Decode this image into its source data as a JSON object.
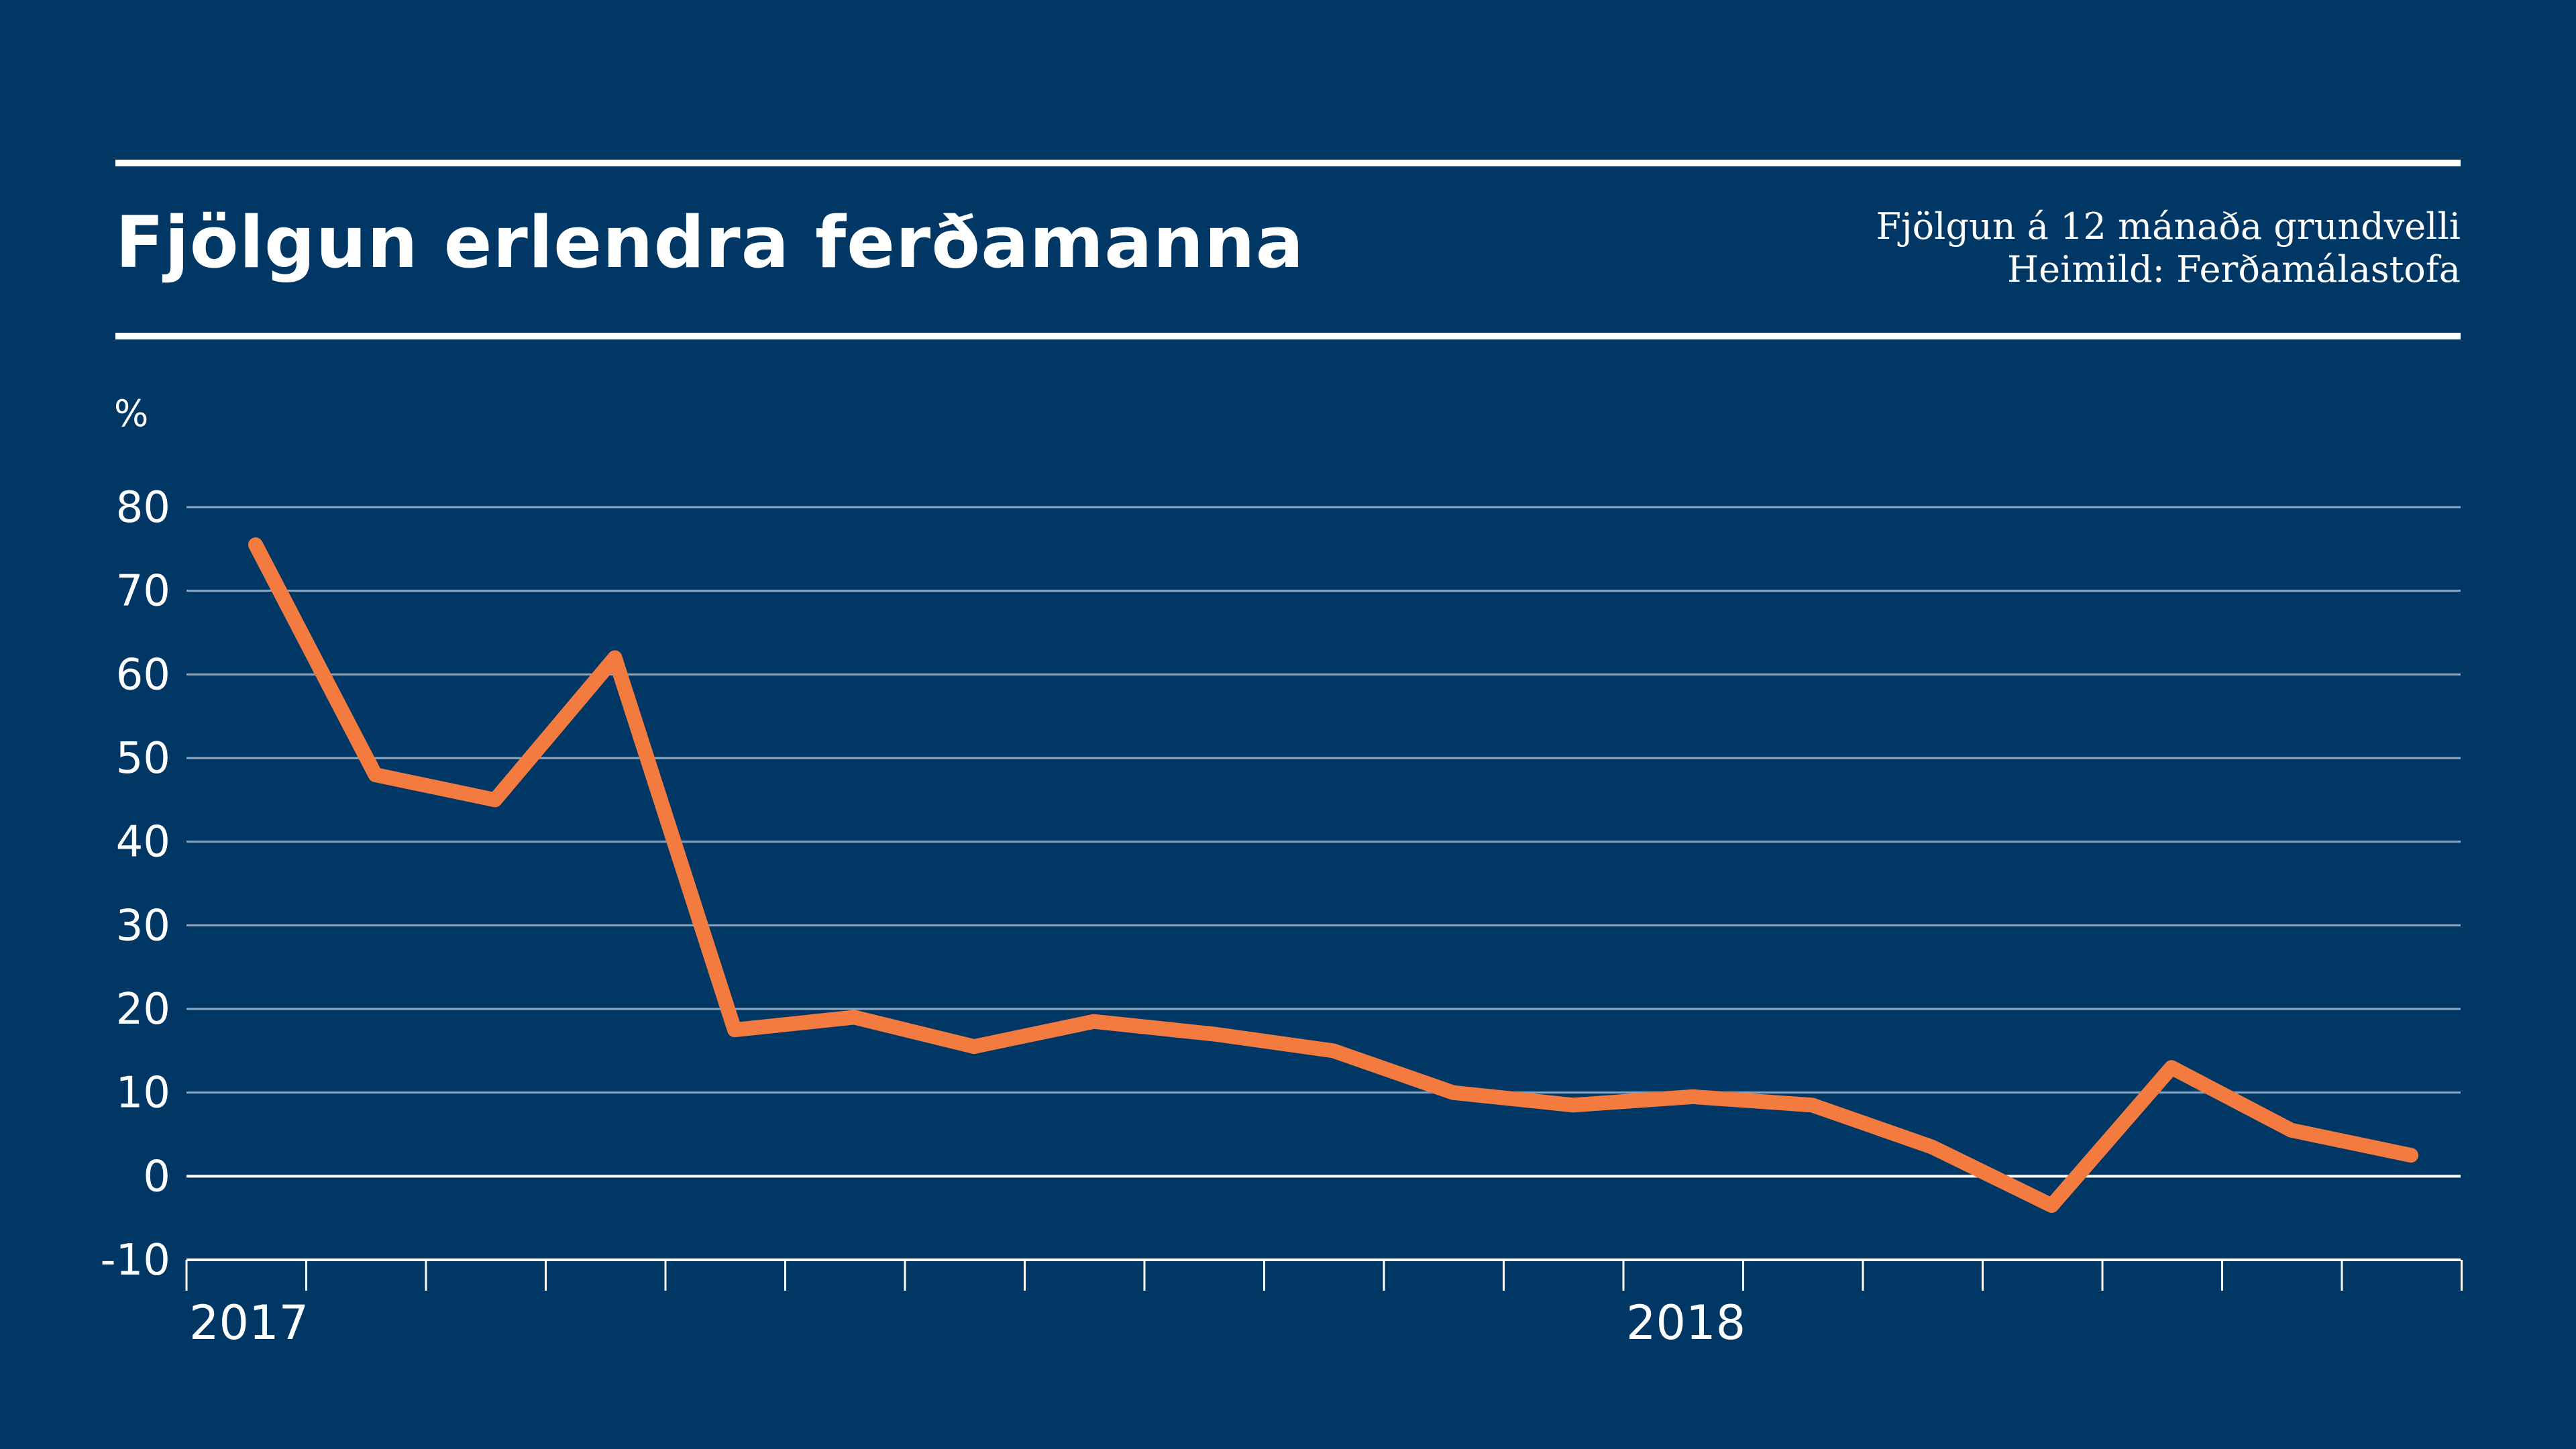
{
  "header": {
    "title": "Fjölgun erlendra ferðamanna",
    "subtitle_line1": "Fjölgun á 12 mánaða grundvelli",
    "subtitle_line2": "Heimild: Ferðamálastofa"
  },
  "colors": {
    "background": "#003764",
    "line": "#F47B3F",
    "gridline": "#8FA6BF",
    "text": "#ffffff"
  },
  "chart_data": {
    "type": "line",
    "title": "Fjölgun erlendra ferðamanna",
    "ylabel": "%",
    "ylim": [
      -10,
      80
    ],
    "yticks": [
      -10,
      0,
      10,
      20,
      30,
      40,
      50,
      60,
      70,
      80
    ],
    "x_labels": [
      "2017",
      "2018"
    ],
    "x_label_index": [
      0,
      12
    ],
    "grid": true,
    "legend": "none",
    "series": [
      {
        "values": [
          75.5,
          48,
          45,
          62,
          17.5,
          19,
          15.5,
          18.5,
          17,
          15,
          10,
          8.5,
          9.5,
          8.5,
          3.5,
          -3.5,
          13,
          5.5,
          2.5
        ]
      }
    ]
  }
}
